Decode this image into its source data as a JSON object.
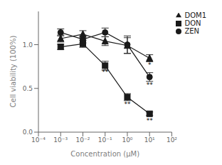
{
  "chart_data": {
    "type": "line",
    "xlabel": "Concentration (μM)",
    "ylabel": "Cell viability (100%)",
    "log": "x",
    "grid": false,
    "legend": "upper right",
    "x": [
      0.001,
      0.01,
      0.1,
      1,
      10
    ],
    "xlim": [
      0.0001,
      100
    ],
    "xticks": [
      {
        "value": 0.0001,
        "label": "10⁻⁴"
      },
      {
        "value": 0.001,
        "label": "10⁻³"
      },
      {
        "value": 0.01,
        "label": "10⁻²"
      },
      {
        "value": 0.1,
        "label": "10⁻¹"
      },
      {
        "value": 1,
        "label": "10⁰"
      },
      {
        "value": 10,
        "label": "10¹"
      },
      {
        "value": 100,
        "label": "10²"
      }
    ],
    "ylim": [
      0.0,
      1.38
    ],
    "yticks": [
      {
        "value": 0,
        "label": "0.0"
      },
      0.5,
      {
        "value": 1,
        "label": "1.0"
      }
    ],
    "series": [
      {
        "name": "ZEN",
        "color": "#1a1a1a",
        "marker": "circle",
        "values": [
          1.14,
          1.06,
          1.14,
          1.0,
          0.63
        ],
        "errors": [
          0.04,
          0.04,
          0.05,
          0.1,
          0.05
        ]
      },
      {
        "name": "DON",
        "color": "#1a1a1a",
        "marker": "square",
        "values": [
          0.975,
          1.01,
          0.76,
          0.4,
          0.21
        ],
        "errors": [
          0.03,
          0.04,
          0.05,
          0.04,
          0.02
        ]
      },
      {
        "name": "DOM1",
        "color": "#1a1a1a",
        "marker": "triangle",
        "values": [
          1.07,
          1.12,
          1.04,
          0.99,
          0.845
        ],
        "errors": [
          0.04,
          0.04,
          0.05,
          0.09,
          0.04
        ]
      }
    ],
    "annotations": [
      {
        "x": 0.1,
        "y": 0.71,
        "text": "**"
      },
      {
        "x": 1,
        "y": 0.35,
        "text": "**"
      },
      {
        "x": 10,
        "y": 0.16,
        "text": "**"
      },
      {
        "x": 10,
        "y": 0.57,
        "text": "**"
      },
      {
        "x": 10,
        "y": 0.795,
        "text": "*"
      }
    ]
  }
}
